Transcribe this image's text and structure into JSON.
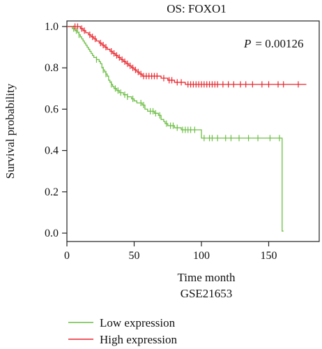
{
  "chart_data": {
    "type": "line",
    "title": "OS: FOXO1",
    "xlabel": "Time month",
    "subtitle": "GSE21653",
    "ylabel": "Survival probability",
    "annotation": {
      "p_label": "P",
      "p_value": "= 0.00126"
    },
    "xlim": [
      0,
      180
    ],
    "ylim": [
      0,
      1.02
    ],
    "x_ticks": [
      0,
      50,
      100,
      150
    ],
    "y_ticks": [
      0.0,
      0.2,
      0.4,
      0.6,
      0.8,
      1.0
    ],
    "y_tick_labels": [
      "0.0",
      "0.2",
      "0.4",
      "0.6",
      "0.8",
      "1.0"
    ],
    "grid": false,
    "legend_position": "bottom",
    "colors": {
      "low": "#6DBE45",
      "high": "#E8262D"
    },
    "series": [
      {
        "name": "Low expression",
        "color": "#6DBE45",
        "steps": [
          [
            0,
            1.0
          ],
          [
            4,
            0.99
          ],
          [
            6,
            0.98
          ],
          [
            8,
            0.97
          ],
          [
            9,
            0.96
          ],
          [
            10,
            0.95
          ],
          [
            11,
            0.94
          ],
          [
            12,
            0.93
          ],
          [
            13,
            0.92
          ],
          [
            14,
            0.91
          ],
          [
            15,
            0.9
          ],
          [
            16,
            0.89
          ],
          [
            17,
            0.88
          ],
          [
            18,
            0.87
          ],
          [
            19,
            0.86
          ],
          [
            20,
            0.85
          ],
          [
            22,
            0.84
          ],
          [
            24,
            0.83
          ],
          [
            25,
            0.82
          ],
          [
            26,
            0.8
          ],
          [
            27,
            0.79
          ],
          [
            28,
            0.78
          ],
          [
            29,
            0.77
          ],
          [
            30,
            0.76
          ],
          [
            31,
            0.74
          ],
          [
            32,
            0.73
          ],
          [
            33,
            0.72
          ],
          [
            34,
            0.71
          ],
          [
            35,
            0.7
          ],
          [
            37,
            0.69
          ],
          [
            39,
            0.68
          ],
          [
            42,
            0.67
          ],
          [
            45,
            0.66
          ],
          [
            48,
            0.65
          ],
          [
            50,
            0.64
          ],
          [
            52,
            0.63
          ],
          [
            56,
            0.62
          ],
          [
            58,
            0.6
          ],
          [
            60,
            0.59
          ],
          [
            65,
            0.58
          ],
          [
            68,
            0.57
          ],
          [
            70,
            0.55
          ],
          [
            72,
            0.54
          ],
          [
            73,
            0.53
          ],
          [
            75,
            0.52
          ],
          [
            80,
            0.51
          ],
          [
            85,
            0.5
          ],
          [
            100,
            0.46
          ],
          [
            160,
            0.01
          ]
        ],
        "end_x": 161,
        "censored": [
          [
            5,
            1.0
          ],
          [
            7,
            0.98
          ],
          [
            9,
            0.96
          ],
          [
            22,
            0.84
          ],
          [
            27,
            0.79
          ],
          [
            29,
            0.77
          ],
          [
            33,
            0.72
          ],
          [
            36,
            0.7
          ],
          [
            38,
            0.69
          ],
          [
            40,
            0.68
          ],
          [
            43,
            0.67
          ],
          [
            45,
            0.66
          ],
          [
            49,
            0.65
          ],
          [
            55,
            0.63
          ],
          [
            57,
            0.62
          ],
          [
            62,
            0.59
          ],
          [
            64,
            0.59
          ],
          [
            66,
            0.58
          ],
          [
            69,
            0.57
          ],
          [
            74,
            0.53
          ],
          [
            77,
            0.52
          ],
          [
            79,
            0.52
          ],
          [
            82,
            0.51
          ],
          [
            86,
            0.5
          ],
          [
            88,
            0.5
          ],
          [
            90,
            0.5
          ],
          [
            92,
            0.5
          ],
          [
            95,
            0.5
          ],
          [
            102,
            0.46
          ],
          [
            106,
            0.46
          ],
          [
            108,
            0.46
          ],
          [
            112,
            0.46
          ],
          [
            118,
            0.46
          ],
          [
            122,
            0.46
          ],
          [
            128,
            0.46
          ],
          [
            135,
            0.46
          ],
          [
            142,
            0.46
          ],
          [
            151,
            0.46
          ],
          [
            158,
            0.46
          ]
        ]
      },
      {
        "name": "High expression",
        "color": "#E8262D",
        "steps": [
          [
            0,
            1.0
          ],
          [
            10,
            0.99
          ],
          [
            12,
            0.98
          ],
          [
            14,
            0.97
          ],
          [
            16,
            0.96
          ],
          [
            18,
            0.95
          ],
          [
            20,
            0.94
          ],
          [
            22,
            0.93
          ],
          [
            24,
            0.92
          ],
          [
            26,
            0.91
          ],
          [
            28,
            0.9
          ],
          [
            30,
            0.89
          ],
          [
            32,
            0.88
          ],
          [
            34,
            0.87
          ],
          [
            36,
            0.86
          ],
          [
            38,
            0.85
          ],
          [
            40,
            0.84
          ],
          [
            42,
            0.83
          ],
          [
            44,
            0.82
          ],
          [
            46,
            0.81
          ],
          [
            48,
            0.8
          ],
          [
            50,
            0.79
          ],
          [
            52,
            0.78
          ],
          [
            54,
            0.77
          ],
          [
            56,
            0.76
          ],
          [
            70,
            0.75
          ],
          [
            75,
            0.74
          ],
          [
            80,
            0.73
          ],
          [
            88,
            0.72
          ]
        ],
        "end_x": 178,
        "censored": [
          [
            6,
            1.0
          ],
          [
            8,
            1.0
          ],
          [
            11,
            0.99
          ],
          [
            13,
            0.98
          ],
          [
            17,
            0.96
          ],
          [
            19,
            0.95
          ],
          [
            21,
            0.94
          ],
          [
            25,
            0.92
          ],
          [
            27,
            0.91
          ],
          [
            29,
            0.9
          ],
          [
            33,
            0.88
          ],
          [
            35,
            0.87
          ],
          [
            37,
            0.86
          ],
          [
            39,
            0.85
          ],
          [
            41,
            0.84
          ],
          [
            43,
            0.83
          ],
          [
            45,
            0.82
          ],
          [
            47,
            0.81
          ],
          [
            49,
            0.8
          ],
          [
            51,
            0.79
          ],
          [
            53,
            0.78
          ],
          [
            55,
            0.77
          ],
          [
            57,
            0.76
          ],
          [
            59,
            0.76
          ],
          [
            61,
            0.76
          ],
          [
            63,
            0.76
          ],
          [
            65,
            0.76
          ],
          [
            67,
            0.76
          ],
          [
            72,
            0.75
          ],
          [
            76,
            0.74
          ],
          [
            78,
            0.74
          ],
          [
            82,
            0.73
          ],
          [
            85,
            0.73
          ],
          [
            90,
            0.72
          ],
          [
            92,
            0.72
          ],
          [
            94,
            0.72
          ],
          [
            96,
            0.72
          ],
          [
            98,
            0.72
          ],
          [
            100,
            0.72
          ],
          [
            102,
            0.72
          ],
          [
            104,
            0.72
          ],
          [
            106,
            0.72
          ],
          [
            108,
            0.72
          ],
          [
            110,
            0.72
          ],
          [
            112,
            0.72
          ],
          [
            116,
            0.72
          ],
          [
            120,
            0.72
          ],
          [
            124,
            0.72
          ],
          [
            129,
            0.72
          ],
          [
            133,
            0.72
          ],
          [
            138,
            0.72
          ],
          [
            145,
            0.72
          ],
          [
            150,
            0.72
          ],
          [
            157,
            0.72
          ],
          [
            161,
            0.72
          ],
          [
            172,
            0.72
          ]
        ]
      }
    ]
  }
}
